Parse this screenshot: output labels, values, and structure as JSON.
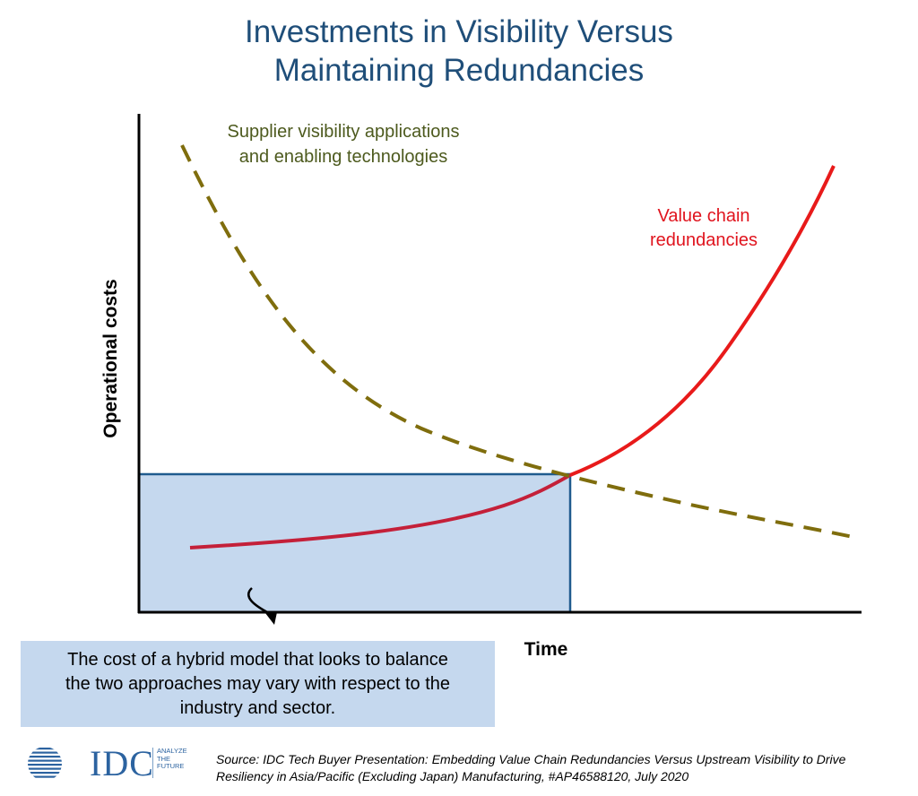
{
  "title": {
    "line1": "Investments in Visibility Versus",
    "line2": "Maintaining Redundancies"
  },
  "chart": {
    "y_axis_label": "Operational costs",
    "x_axis_label": "Time",
    "supplier_label": {
      "line1": "Supplier visibility applications",
      "line2": "and enabling  technologies"
    },
    "redundancy_label": {
      "line1": "Value chain",
      "line2": "redundancies"
    },
    "colors": {
      "supplier_curve": "#7f6d0d",
      "redundancy_curve": "#e81a1a",
      "redundancy_curve_inside_box": "#c42039",
      "hybrid_box_fill": "#c5d8ee",
      "hybrid_box_stroke": "#1f5b8e"
    }
  },
  "callout": {
    "line1": "The cost of a hybrid model that looks to balance",
    "line2": "the two approaches may vary with respect to the",
    "line3": "industry and sector."
  },
  "logo": {
    "wordmark": "IDC",
    "tagline": [
      "ANALYZE",
      "THE",
      "FUTURE"
    ]
  },
  "source": {
    "line1": "Source: IDC Tech Buyer Presentation: Embedding Value Chain Redundancies Versus Upstream Visibility to Drive",
    "line2": "Resiliency in Asia/Pacific (Excluding Japan) Manufacturing, #AP46588120, July 2020"
  }
}
